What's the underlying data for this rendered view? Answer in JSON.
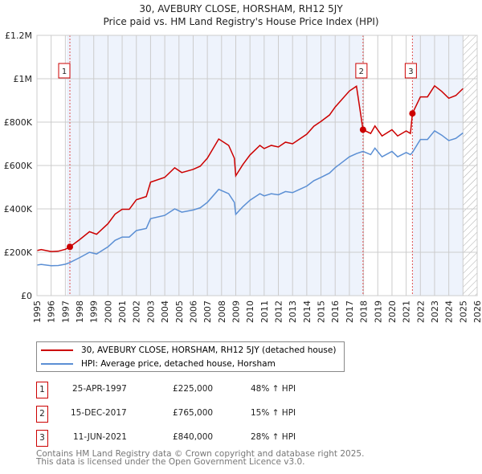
{
  "title_line1": "30, AVEBURY CLOSE, HORSHAM, RH12 5JY",
  "title_line2": "Price paid vs. HM Land Registry's House Price Index (HPI)",
  "chart_data": {
    "type": "line",
    "xlim": [
      1995,
      2026
    ],
    "ylim": [
      0,
      1200000
    ],
    "yticks": [
      0,
      200000,
      400000,
      600000,
      800000,
      1000000,
      1200000
    ],
    "ytick_labels": [
      "£0",
      "£200K",
      "£400K",
      "£600K",
      "£800K",
      "£1M",
      "£1.2M"
    ],
    "xticks": [
      1995,
      1996,
      1997,
      1998,
      1999,
      2000,
      2001,
      2002,
      2003,
      2004,
      2005,
      2006,
      2007,
      2008,
      2009,
      2010,
      2011,
      2012,
      2013,
      2014,
      2015,
      2016,
      2017,
      2018,
      2019,
      2020,
      2021,
      2022,
      2023,
      2024,
      2025,
      2026
    ],
    "grid": true,
    "forecast_hatch_from": 2025.0,
    "colors": {
      "property": "#cc0000",
      "hpi": "#5b8fd4",
      "shade": "#eef3fc"
    },
    "series": [
      {
        "name": "30, AVEBURY CLOSE, HORSHAM, RH12 5JY (detached house)",
        "derived_from_hpi": true
      },
      {
        "name": "HPI: Average price, detached house, Horsham",
        "x": [
          1995.0,
          1995.3,
          1996.0,
          1996.5,
          1997.0,
          1997.3,
          1998.0,
          1998.7,
          1999.2,
          2000.0,
          2000.5,
          2001.0,
          2001.5,
          2002.0,
          2002.7,
          2003.0,
          2004.0,
          2004.7,
          2005.2,
          2006.0,
          2006.5,
          2007.0,
          2007.8,
          2008.5,
          2008.9,
          2009.0,
          2009.5,
          2010.0,
          2010.7,
          2011.0,
          2011.5,
          2012.0,
          2012.5,
          2013.0,
          2013.5,
          2014.0,
          2014.5,
          2015.0,
          2015.6,
          2016.0,
          2016.5,
          2017.0,
          2017.5,
          2017.96,
          2018.5,
          2018.8,
          2019.3,
          2020.0,
          2020.4,
          2021.0,
          2021.3,
          2021.44,
          2022.0,
          2022.5,
          2023.0,
          2023.5,
          2024.0,
          2024.5,
          2025.0
        ],
        "y": [
          141000,
          144000,
          138000,
          139000,
          145000,
          152000,
          175000,
          200000,
          192000,
          225000,
          255000,
          270000,
          270000,
          300000,
          310000,
          355000,
          370000,
          400000,
          385000,
          395000,
          405000,
          430000,
          490000,
          470000,
          430000,
          375000,
          410000,
          440000,
          470000,
          460000,
          470000,
          465000,
          480000,
          475000,
          490000,
          505000,
          530000,
          545000,
          565000,
          590000,
          615000,
          640000,
          655000,
          665000,
          650000,
          680000,
          640000,
          665000,
          640000,
          660000,
          650000,
          660000,
          720000,
          720000,
          760000,
          740000,
          715000,
          725000,
          750000
        ]
      }
    ],
    "sales": [
      {
        "id": "1",
        "x": 1997.32,
        "price": 225000,
        "date": "25-APR-1997",
        "price_label": "£225,000",
        "hpi_diff": "48% ↑ HPI"
      },
      {
        "id": "2",
        "x": 2017.96,
        "price": 765000,
        "date": "15-DEC-2017",
        "price_label": "£765,000",
        "hpi_diff": "15% ↑ HPI"
      },
      {
        "id": "3",
        "x": 2021.44,
        "price": 840000,
        "date": "11-JUN-2021",
        "price_label": "£840,000",
        "hpi_diff": "28% ↑ HPI"
      }
    ]
  },
  "footer_line1": "Contains HM Land Registry data © Crown copyright and database right 2025.",
  "footer_line2": "This data is licensed under the Open Government Licence v3.0."
}
